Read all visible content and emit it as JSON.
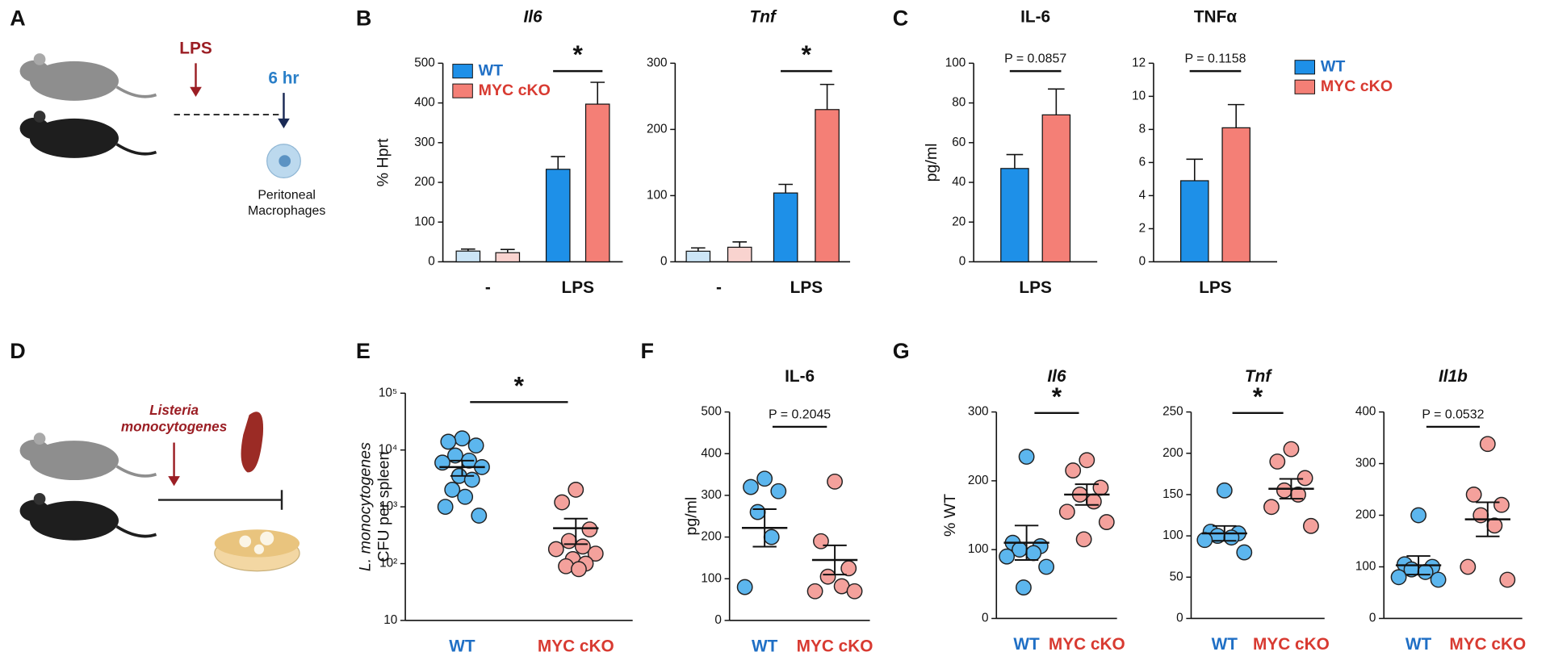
{
  "panel_labels": [
    "A",
    "B",
    "C",
    "D",
    "E",
    "F",
    "G"
  ],
  "diagram_a": {
    "stimulus": "LPS",
    "time": "6 hr",
    "cells": [
      "Peritoneal",
      "Macrophages"
    ]
  },
  "diagram_d": {
    "infection": [
      "Listeria",
      "monocytogenes"
    ]
  },
  "chart_data": [
    {
      "type": "bar",
      "title": "Il6",
      "title_italic": true,
      "ylabel": "% Hprt",
      "categories": [
        "-",
        "LPS"
      ],
      "ylim": [
        0,
        500
      ],
      "yticks": [
        0,
        100,
        200,
        300,
        400,
        500
      ],
      "series": [
        {
          "name": "WT",
          "color": "#1e90e8",
          "colors": [
            "#cce5f6",
            "#1e90e8"
          ],
          "values": [
            27,
            233
          ],
          "errors": [
            5,
            32
          ]
        },
        {
          "name": "MYC cKO",
          "color": "#f47f76",
          "colors": [
            "#f9d3cf",
            "#f47f76"
          ],
          "values": [
            23,
            397
          ],
          "errors": [
            8,
            55
          ]
        }
      ],
      "legend": true,
      "annotation": {
        "text": "*"
      }
    },
    {
      "type": "bar",
      "title": "Tnf",
      "title_italic": true,
      "categories": [
        "-",
        "LPS"
      ],
      "ylim": [
        0,
        300
      ],
      "yticks": [
        0,
        100,
        200,
        300
      ],
      "series": [
        {
          "name": "WT",
          "color": "#1e90e8",
          "colors": [
            "#cce5f6",
            "#1e90e8"
          ],
          "values": [
            16,
            104
          ],
          "errors": [
            5,
            13
          ]
        },
        {
          "name": "MYC cKO",
          "color": "#f47f76",
          "colors": [
            "#f9d3cf",
            "#f47f76"
          ],
          "values": [
            22,
            230
          ],
          "errors": [
            8,
            38
          ]
        }
      ],
      "annotation": {
        "text": "*"
      }
    },
    {
      "type": "bar",
      "title": "IL-6",
      "title_italic": false,
      "ylabel": "pg/ml",
      "categories": [
        "LPS"
      ],
      "ylim": [
        0,
        100
      ],
      "yticks": [
        0,
        20,
        40,
        60,
        80,
        100
      ],
      "series": [
        {
          "name": "WT",
          "color": "#1e90e8",
          "values": [
            47
          ],
          "errors": [
            7
          ]
        },
        {
          "name": "MYC cKO",
          "color": "#f47f76",
          "values": [
            74
          ],
          "errors": [
            13
          ]
        }
      ],
      "annotation": {
        "text": "P = 0.0857"
      }
    },
    {
      "type": "bar",
      "title": "TNFα",
      "title_italic": false,
      "categories": [
        "LPS"
      ],
      "ylim": [
        0,
        12
      ],
      "yticks": [
        0,
        2,
        4,
        6,
        8,
        10,
        12
      ],
      "series": [
        {
          "name": "WT",
          "color": "#1e90e8",
          "values": [
            4.9
          ],
          "errors": [
            1.3
          ]
        },
        {
          "name": "MYC cKO",
          "color": "#f47f76",
          "values": [
            8.1
          ],
          "errors": [
            1.4
          ]
        }
      ],
      "legend": true,
      "annotation": {
        "text": "P = 0.1158"
      }
    },
    {
      "type": "dot",
      "ylabel": [
        "L. monocytogenes",
        "CFU per spleen"
      ],
      "ylog": true,
      "categories": [
        "WT",
        "MYC cKO"
      ],
      "category_colors": [
        "#1f6fc5",
        "#d83a31"
      ],
      "ylim": [
        10,
        100000
      ],
      "yticks": [
        10,
        {
          "value": 100,
          "label": "10²"
        },
        {
          "value": 1000,
          "label": "10³"
        },
        {
          "value": 10000,
          "label": "10⁴"
        },
        {
          "value": 100000,
          "label": "10⁵"
        }
      ],
      "groups": [
        {
          "color": "#5cb6ee",
          "values": [
            16000,
            14000,
            12000,
            8000,
            6500,
            6000,
            5000,
            3500,
            3000,
            2000,
            1500,
            1000,
            700
          ],
          "mean": 5000,
          "sem": 1500
        },
        {
          "color": "#f4a19c",
          "values": [
            2000,
            1200,
            400,
            250,
            200,
            180,
            150,
            120,
            100,
            90,
            80
          ],
          "mean": 420,
          "sem": 200
        }
      ],
      "annotation": {
        "text": "*"
      }
    },
    {
      "type": "dot",
      "title": "IL-6",
      "title_italic": false,
      "ylabel": "pg/ml",
      "categories": [
        "WT",
        "MYC cKO"
      ],
      "category_colors": [
        "#1f6fc5",
        "#d83a31"
      ],
      "ylim": [
        0,
        500
      ],
      "yticks": [
        0,
        100,
        200,
        300,
        400,
        500
      ],
      "groups": [
        {
          "color": "#5cb6ee",
          "values": [
            340,
            320,
            310,
            260,
            200,
            80
          ],
          "mean": 222,
          "sem": 45
        },
        {
          "color": "#f4a19c",
          "values": [
            333,
            190,
            125,
            105,
            82,
            70,
            70
          ],
          "mean": 145,
          "sem": 35
        }
      ],
      "annotation": {
        "text": "P = 0.2045"
      }
    },
    {
      "type": "dot",
      "title": "Il6",
      "title_italic": true,
      "ylabel": "% WT",
      "categories": [
        "WT",
        "MYC cKO"
      ],
      "category_colors": [
        "#1f6fc5",
        "#d83a31"
      ],
      "ylim": [
        0,
        300
      ],
      "yticks": [
        0,
        100,
        200,
        300
      ],
      "groups": [
        {
          "color": "#5cb6ee",
          "values": [
            235,
            110,
            105,
            100,
            95,
            90,
            75,
            45
          ],
          "mean": 110,
          "sem": 25
        },
        {
          "color": "#f4a19c",
          "values": [
            230,
            215,
            190,
            180,
            170,
            155,
            140,
            115
          ],
          "mean": 180,
          "sem": 15
        }
      ],
      "annotation": {
        "text": "*"
      }
    },
    {
      "type": "dot",
      "title": "Tnf",
      "title_italic": true,
      "categories": [
        "WT",
        "MYC cKO"
      ],
      "category_colors": [
        "#1f6fc5",
        "#d83a31"
      ],
      "ylim": [
        0,
        250
      ],
      "yticks": [
        0,
        50,
        100,
        150,
        200,
        250
      ],
      "groups": [
        {
          "color": "#5cb6ee",
          "values": [
            155,
            105,
            103,
            100,
            98,
            95,
            80
          ],
          "mean": 103,
          "sem": 9
        },
        {
          "color": "#f4a19c",
          "values": [
            205,
            190,
            170,
            155,
            150,
            135,
            112
          ],
          "mean": 157,
          "sem": 12
        }
      ],
      "annotation": {
        "text": "*"
      }
    },
    {
      "type": "dot",
      "title": "Il1b",
      "title_italic": true,
      "categories": [
        "WT",
        "MYC cKO"
      ],
      "category_colors": [
        "#1f6fc5",
        "#d83a31"
      ],
      "ylim": [
        0,
        400
      ],
      "yticks": [
        0,
        100,
        200,
        300,
        400
      ],
      "groups": [
        {
          "color": "#5cb6ee",
          "values": [
            200,
            105,
            100,
            95,
            90,
            80,
            75
          ],
          "mean": 103,
          "sem": 18
        },
        {
          "color": "#f4a19c",
          "values": [
            338,
            240,
            220,
            200,
            180,
            100,
            75
          ],
          "mean": 192,
          "sem": 33
        }
      ],
      "annotation": {
        "text": "P = 0.0532"
      }
    }
  ]
}
